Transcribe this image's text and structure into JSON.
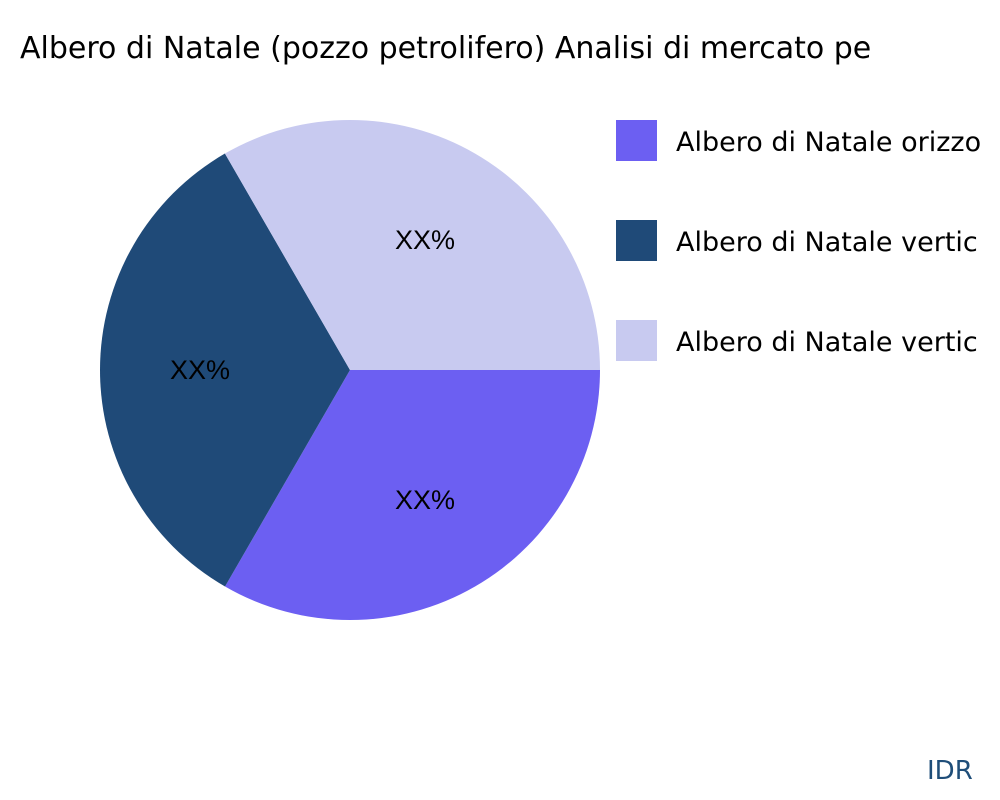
{
  "chart_data": {
    "type": "pie",
    "title": "Albero di Natale (pozzo petrolifero) Analisi di mercato pe",
    "slices": [
      {
        "legend": "Albero di Natale orizzo",
        "value": 33.33,
        "label": "XX%",
        "color": "#6c5ff2"
      },
      {
        "legend": "Albero di Natale vertic",
        "value": 33.33,
        "label": "XX%",
        "color": "#1f4a78"
      },
      {
        "legend": "Albero di Natale vertic",
        "value": 33.34,
        "label": "XX%",
        "color": "#c8caf0"
      }
    ],
    "legend_position": "right"
  },
  "source": "IDR"
}
